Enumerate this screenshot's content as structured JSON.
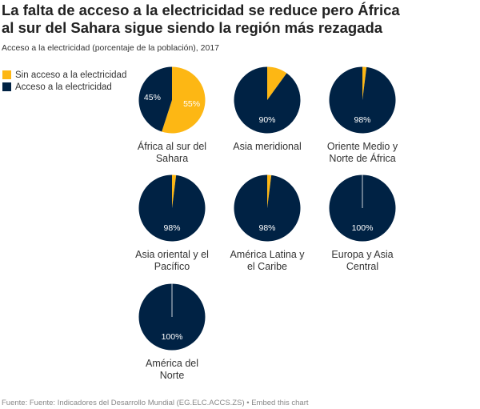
{
  "title_line1": "La falta de acceso a la electricidad se reduce pero África",
  "title_line2": "al sur del Sahara sigue siendo la región más rezagada",
  "subtitle": "Acceso a la electricidad (porcentaje de la población), 2017",
  "footer": "Fuente: Fuente: Indicadores del Desarrollo Mundial (EG.ELC.ACCS.ZS) • Embed this chart",
  "colors": {
    "sin_acceso": "#fdb714",
    "acceso": "#002244"
  },
  "chart_data": {
    "type": "pie",
    "year": 2017,
    "legend": [
      "Sin acceso a la electricidad",
      "Acceso a la electricidad"
    ],
    "legend_position": "top-left",
    "pies": [
      {
        "region": [
          "África al sur del",
          "Sahara"
        ],
        "sin_acceso": 55,
        "acceso": 45,
        "labels": {
          "sin_acceso": "55%",
          "acceso": "45%"
        }
      },
      {
        "region": [
          "Asia meridional"
        ],
        "sin_acceso": 10,
        "acceso": 90,
        "labels": {
          "acceso": "90%"
        }
      },
      {
        "region": [
          "Oriente Medio y",
          "Norte de África"
        ],
        "sin_acceso": 2,
        "acceso": 98,
        "labels": {
          "acceso": "98%"
        }
      },
      {
        "region": [
          "Asia oriental y el",
          "Pacífico"
        ],
        "sin_acceso": 2,
        "acceso": 98,
        "labels": {
          "acceso": "98%"
        }
      },
      {
        "region": [
          "América Latina y",
          "el Caribe"
        ],
        "sin_acceso": 2,
        "acceso": 98,
        "labels": {
          "acceso": "98%"
        }
      },
      {
        "region": [
          "Europa y Asia",
          "Central"
        ],
        "sin_acceso": 0,
        "acceso": 100,
        "labels": {
          "acceso": "100%"
        }
      },
      {
        "region": [
          "América del",
          "Norte"
        ],
        "sin_acceso": 0,
        "acceso": 100,
        "labels": {
          "acceso": "100%"
        }
      }
    ]
  }
}
